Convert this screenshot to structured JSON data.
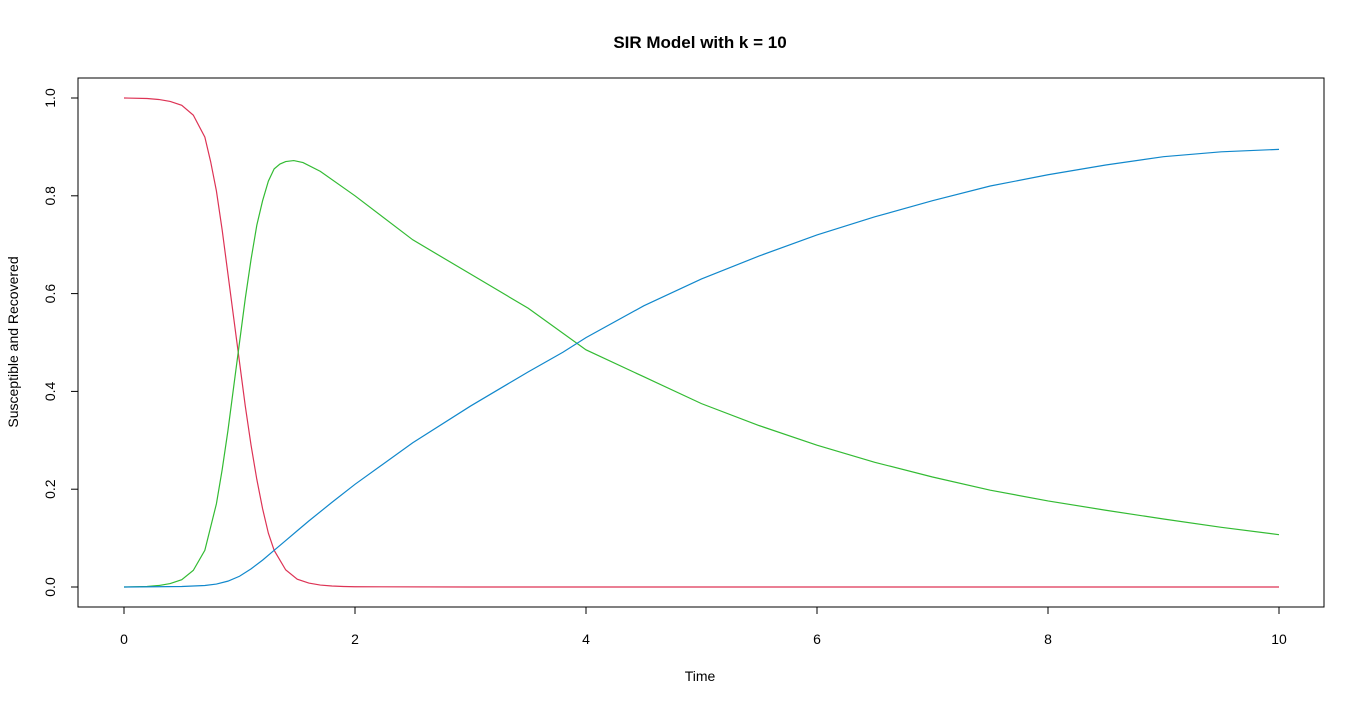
{
  "chart_data": {
    "type": "line",
    "title": "SIR Model with k = 10",
    "xlabel": "Time",
    "ylabel": "Susceptible and Recovered",
    "xlim": [
      0,
      10
    ],
    "ylim": [
      0,
      1
    ],
    "x_ticks": [
      0,
      2,
      4,
      6,
      8,
      10
    ],
    "y_ticks": [
      0.0,
      0.2,
      0.4,
      0.6,
      0.8,
      1.0
    ],
    "x_tick_labels": [
      "0",
      "2",
      "4",
      "6",
      "8",
      "10"
    ],
    "y_tick_labels": [
      "0.0",
      "0.2",
      "0.4",
      "0.6",
      "0.8",
      "1.0"
    ],
    "grid": false,
    "legend": "none",
    "series": [
      {
        "color": "#dd3355",
        "x": [
          0,
          0.2,
          0.3,
          0.4,
          0.5,
          0.6,
          0.7,
          0.75,
          0.8,
          0.85,
          0.9,
          0.95,
          1.0,
          1.05,
          1.1,
          1.15,
          1.2,
          1.25,
          1.3,
          1.4,
          1.5,
          1.6,
          1.7,
          1.8,
          1.9,
          2.0,
          3,
          4,
          5,
          6,
          7,
          8,
          9,
          10
        ],
        "y": [
          1.0,
          0.999,
          0.997,
          0.993,
          0.985,
          0.965,
          0.92,
          0.87,
          0.81,
          0.73,
          0.64,
          0.55,
          0.46,
          0.37,
          0.29,
          0.22,
          0.16,
          0.11,
          0.075,
          0.035,
          0.016,
          0.008,
          0.004,
          0.002,
          0.001,
          0.0005,
          0.0,
          0.0,
          0.0,
          0.0,
          0.0,
          0.0,
          0.0,
          0.0
        ]
      },
      {
        "color": "#33bb33",
        "x": [
          0,
          0.2,
          0.3,
          0.4,
          0.5,
          0.6,
          0.7,
          0.8,
          0.85,
          0.9,
          0.95,
          1.0,
          1.05,
          1.1,
          1.15,
          1.2,
          1.25,
          1.3,
          1.35,
          1.4,
          1.47,
          1.55,
          1.7,
          2.0,
          2.5,
          3.0,
          3.5,
          4.0,
          4.5,
          5.0,
          5.5,
          6.0,
          6.5,
          7.0,
          7.5,
          8.0,
          8.5,
          9.0,
          9.5,
          10.0
        ],
        "y": [
          0.0,
          0.001,
          0.003,
          0.007,
          0.015,
          0.034,
          0.075,
          0.17,
          0.24,
          0.32,
          0.41,
          0.5,
          0.59,
          0.67,
          0.74,
          0.79,
          0.83,
          0.855,
          0.865,
          0.87,
          0.872,
          0.868,
          0.85,
          0.8,
          0.71,
          0.64,
          0.57,
          0.485,
          0.43,
          0.375,
          0.33,
          0.29,
          0.255,
          0.225,
          0.198,
          0.176,
          0.157,
          0.139,
          0.122,
          0.107
        ]
      },
      {
        "color": "#1188cc",
        "x": [
          0,
          0.5,
          0.7,
          0.8,
          0.9,
          1.0,
          1.1,
          1.2,
          1.3,
          1.4,
          1.5,
          1.6,
          1.8,
          2.0,
          2.5,
          3.0,
          3.5,
          3.8,
          4.0,
          4.5,
          5.0,
          5.5,
          6.0,
          6.5,
          7.0,
          7.5,
          8.0,
          8.5,
          9.0,
          9.5,
          10.0
        ],
        "y": [
          0.0,
          0.001,
          0.003,
          0.006,
          0.012,
          0.022,
          0.037,
          0.055,
          0.075,
          0.095,
          0.115,
          0.135,
          0.173,
          0.21,
          0.295,
          0.37,
          0.44,
          0.48,
          0.51,
          0.575,
          0.63,
          0.677,
          0.72,
          0.757,
          0.79,
          0.82,
          0.843,
          0.863,
          0.88,
          0.89,
          0.895
        ]
      }
    ]
  }
}
